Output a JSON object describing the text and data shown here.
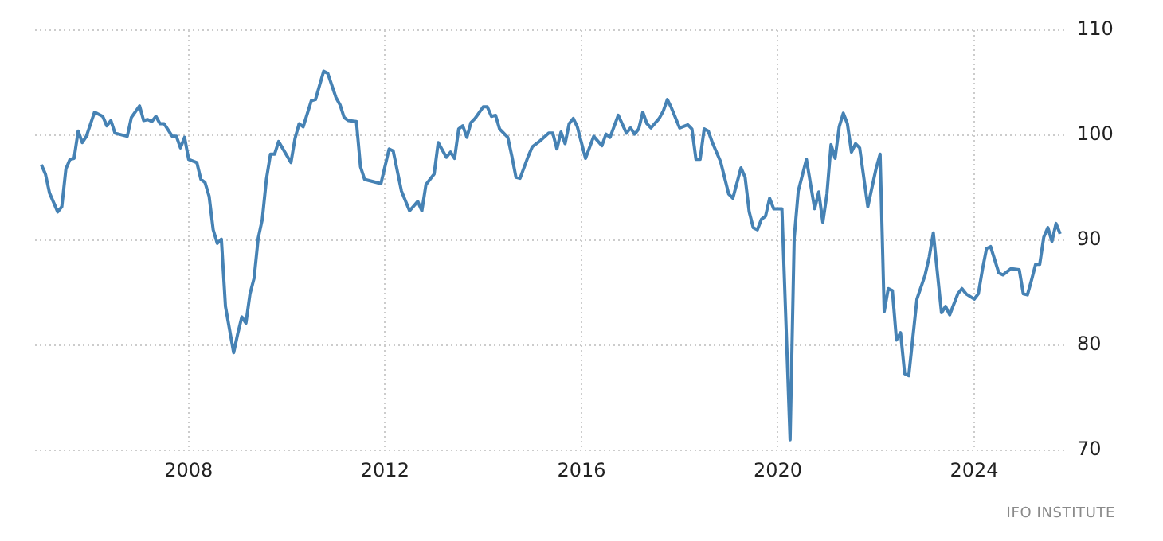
{
  "chart_data": {
    "type": "line",
    "annotations": [
      "IFO INSTITUTE"
    ],
    "x": [
      "2005-01",
      "2005-02",
      "2005-03",
      "2005-05",
      "2005-06",
      "2005-07",
      "2005-08",
      "2005-09",
      "2005-10",
      "2005-11",
      "2005-12",
      "2006-02",
      "2006-04",
      "2006-05",
      "2006-06",
      "2006-07",
      "2006-10",
      "2006-11",
      "2007-01",
      "2007-02",
      "2007-03",
      "2007-04",
      "2007-05",
      "2007-06",
      "2007-07",
      "2007-09",
      "2007-10",
      "2007-11",
      "2007-12",
      "2008-01",
      "2008-03",
      "2008-04",
      "2008-05",
      "2008-06",
      "2008-07",
      "2008-08",
      "2008-09",
      "2008-10",
      "2008-12",
      "2009-01",
      "2009-02",
      "2009-03",
      "2009-04",
      "2009-05",
      "2009-06",
      "2009-07",
      "2009-08",
      "2009-09",
      "2009-10",
      "2009-11",
      "2010-02",
      "2010-03",
      "2010-04",
      "2010-05",
      "2010-07",
      "2010-08",
      "2010-10",
      "2010-11",
      "2011-01",
      "2011-02",
      "2011-03",
      "2011-04",
      "2011-06",
      "2011-07",
      "2011-08",
      "2011-12",
      "2012-02",
      "2012-03",
      "2012-05",
      "2012-07",
      "2012-09",
      "2012-10",
      "2012-11",
      "2013-01",
      "2013-02",
      "2013-04",
      "2013-05",
      "2013-06",
      "2013-07",
      "2013-08",
      "2013-09",
      "2013-10",
      "2013-11",
      "2014-01",
      "2014-02",
      "2014-03",
      "2014-04",
      "2014-05",
      "2014-07",
      "2014-08",
      "2014-09",
      "2014-10",
      "2014-12",
      "2015-01",
      "2015-03",
      "2015-05",
      "2015-06",
      "2015-07",
      "2015-08",
      "2015-09",
      "2015-10",
      "2015-11",
      "2015-12",
      "2016-02",
      "2016-04",
      "2016-06",
      "2016-07",
      "2016-08",
      "2016-10",
      "2016-12",
      "2017-01",
      "2017-02",
      "2017-03",
      "2017-04",
      "2017-05",
      "2017-06",
      "2017-08",
      "2017-09",
      "2017-10",
      "2017-11",
      "2018-01",
      "2018-03",
      "2018-04",
      "2018-05",
      "2018-06",
      "2018-07",
      "2018-08",
      "2018-09",
      "2018-11",
      "2019-01",
      "2019-02",
      "2019-04",
      "2019-05",
      "2019-06",
      "2019-07",
      "2019-08",
      "2019-09",
      "2019-10",
      "2019-11",
      "2019-12",
      "2020-02",
      "2020-04",
      "2020-05",
      "2020-06",
      "2020-08",
      "2020-10",
      "2020-11",
      "2020-12",
      "2021-01",
      "2021-02",
      "2021-03",
      "2021-04",
      "2021-05",
      "2021-06",
      "2021-07",
      "2021-08",
      "2021-09",
      "2021-11",
      "2022-01",
      "2022-02",
      "2022-03",
      "2022-04",
      "2022-05",
      "2022-06",
      "2022-07",
      "2022-08",
      "2022-09",
      "2022-11",
      "2023-01",
      "2023-02",
      "2023-03",
      "2023-05",
      "2023-06",
      "2023-07",
      "2023-09",
      "2023-10",
      "2023-11",
      "2024-01",
      "2024-02",
      "2024-03",
      "2024-04",
      "2024-05",
      "2024-07",
      "2024-08",
      "2024-10",
      "2024-12",
      "2025-01",
      "2025-02",
      "2025-03",
      "2025-04",
      "2025-05",
      "2025-06",
      "2025-07",
      "2025-08",
      "2025-09",
      "2025-10"
    ],
    "series": [
      {
        "color": "#4682b4",
        "values": [
          97.2,
          96.3,
          94.5,
          92.7,
          93.2,
          96.8,
          97.7,
          97.8,
          100.4,
          99.3,
          99.9,
          102.2,
          101.8,
          100.9,
          101.4,
          100.2,
          99.9,
          101.7,
          102.8,
          101.4,
          101.5,
          101.3,
          101.8,
          101.1,
          101.1,
          99.9,
          99.9,
          98.8,
          99.8,
          97.7,
          97.4,
          95.8,
          95.5,
          94.2,
          91.0,
          89.7,
          90.1,
          83.7,
          79.3,
          81.1,
          82.7,
          82.1,
          84.9,
          86.4,
          90.2,
          92.0,
          95.8,
          98.2,
          98.2,
          99.4,
          97.4,
          99.7,
          101.1,
          100.8,
          103.3,
          103.4,
          106.1,
          105.9,
          103.6,
          102.9,
          101.7,
          101.4,
          101.3,
          97.0,
          95.8,
          95.4,
          98.7,
          98.5,
          94.7,
          92.8,
          93.7,
          92.8,
          95.3,
          96.3,
          99.3,
          97.9,
          98.4,
          97.8,
          100.6,
          100.9,
          99.8,
          101.2,
          101.6,
          102.7,
          102.7,
          101.8,
          101.9,
          100.6,
          99.8,
          98.0,
          96.0,
          95.9,
          98.0,
          98.9,
          99.5,
          100.2,
          100.2,
          98.7,
          100.3,
          99.2,
          101.1,
          101.6,
          100.8,
          97.8,
          99.9,
          99.0,
          100.1,
          99.8,
          101.9,
          100.2,
          100.7,
          100.1,
          100.6,
          102.2,
          101.1,
          100.7,
          101.6,
          102.3,
          103.4,
          102.6,
          100.7,
          101.0,
          100.6,
          97.7,
          97.7,
          100.6,
          100.4,
          99.3,
          97.5,
          94.4,
          94.0,
          96.9,
          96.0,
          92.7,
          91.2,
          91.0,
          92.0,
          92.3,
          94.0,
          93.0,
          93.0,
          71.0,
          90.2,
          94.7,
          97.7,
          93.0,
          94.6,
          91.7,
          94.4,
          99.1,
          97.8,
          100.8,
          102.1,
          101.1,
          98.4,
          99.2,
          98.8,
          93.2,
          96.8,
          98.2,
          83.2,
          85.4,
          85.2,
          80.5,
          81.2,
          77.3,
          77.1,
          84.4,
          86.7,
          88.4,
          90.7,
          83.1,
          83.7,
          82.9,
          84.9,
          85.4,
          84.9,
          84.4,
          84.9,
          87.2,
          89.2,
          89.4,
          86.9,
          86.7,
          87.3,
          87.2,
          84.9,
          84.8,
          86.2,
          87.7,
          87.7,
          90.3,
          91.2,
          89.9,
          91.6,
          90.6
        ]
      }
    ],
    "xlim": [
      "2004-11-15",
      "2025-11-01"
    ],
    "xticks": [
      "2008",
      "2012",
      "2016",
      "2020",
      "2024"
    ],
    "ylim": [
      70,
      110
    ],
    "yticks": [
      70,
      80,
      90,
      100,
      110
    ],
    "grid": true,
    "legend": false,
    "marker": "none",
    "line_style": "solid"
  }
}
